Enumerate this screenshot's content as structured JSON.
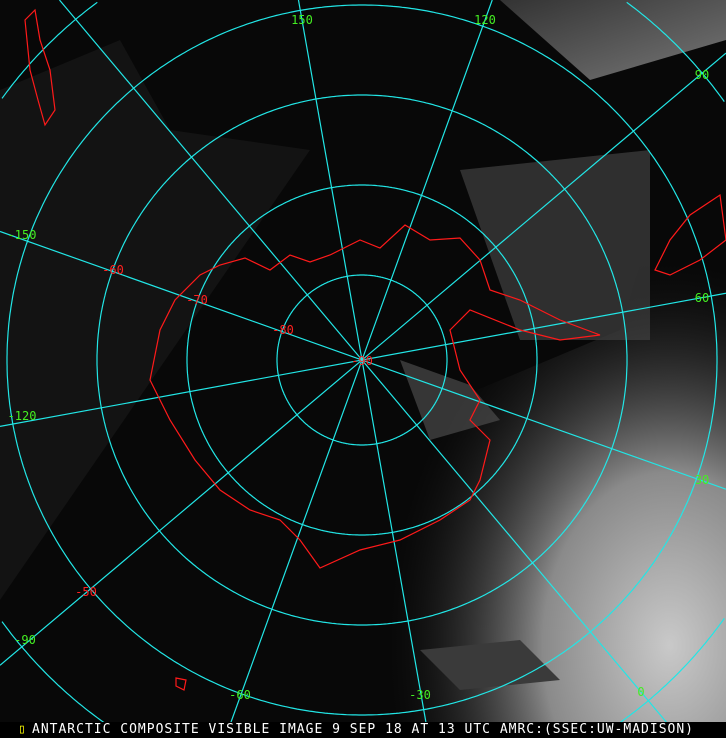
{
  "caption": "ANTARCTIC COMPOSITE VISIBLE IMAGE 9 SEP 18 AT 13 UTC AMRC:(SSEC:UW-MADISON)",
  "colors": {
    "grid": "#22e6e6",
    "coastline": "#ff1a1a",
    "longitude_labels": "#44ee22",
    "latitude_labels": "#ff2020",
    "background": "#000000"
  },
  "longitude_labels": [
    "150",
    "120",
    "90",
    "60",
    "30",
    "0",
    "-30",
    "-60",
    "-90",
    "-120",
    "-150"
  ],
  "latitude_labels": [
    "-90",
    "-80",
    "-70",
    "-60",
    "-50"
  ]
}
